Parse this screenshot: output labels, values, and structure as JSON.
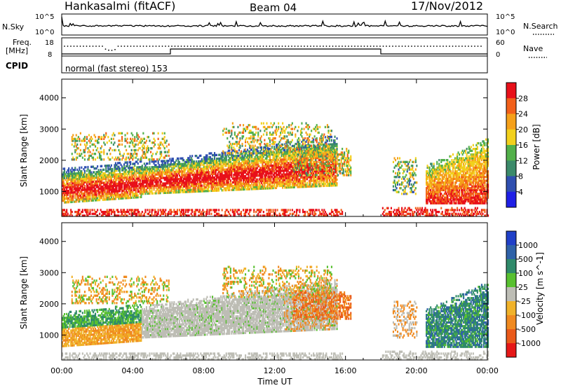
{
  "header": {
    "station": "Hankasalmi (fitACF)",
    "beam": "Beam 04",
    "date": "17/Nov/2012"
  },
  "status_panel": {
    "nsky_label": "N.Sky",
    "nsky_tick_high": "10^5",
    "nsky_tick_low": "10^0",
    "nsearch_label": "N.Search",
    "nsearch_tick_high": "10^5",
    "nsearch_tick_low": "10^0",
    "freq_label_line1": "Freq.",
    "freq_label_line2": "[MHz]",
    "freq_tick_high": "18",
    "freq_tick_low": "8",
    "nave_label": "Nave",
    "nave_tick_high": "60",
    "nave_tick_low": "0",
    "cpid_label": "CPID",
    "cpid_value": "normal (fast stereo) 153"
  },
  "colors": {
    "power_scale": [
      "#1f1fe6",
      "#2f4fb0",
      "#3b8a6a",
      "#52b04a",
      "#f2d01c",
      "#f5a01a",
      "#f2601a",
      "#e8101a"
    ],
    "velocity_scale": [
      "#2040c8",
      "#2f62a8",
      "#2f8a6a",
      "#58c030",
      "#bdbdb5",
      "#f0b22a",
      "#f08a20",
      "#ea5a1a",
      "#e61818"
    ]
  },
  "chart_data": [
    {
      "type": "heatmap",
      "panel": "power",
      "xlabel": "",
      "ylabel": "Slant Range [km]",
      "yticks": [
        "1000",
        "2000",
        "3000",
        "4000"
      ],
      "ylim": [
        200,
        4600
      ],
      "xlim": [
        "00:00",
        "24:00"
      ],
      "colorbar_label": "Power [dB]",
      "colorbar_ticks": [
        "4",
        "8",
        "12",
        "16",
        "20",
        "24",
        "28"
      ],
      "grid": false
    },
    {
      "type": "heatmap",
      "panel": "velocity",
      "xlabel": "Time UT",
      "xticks": [
        "00:00",
        "04:00",
        "08:00",
        "12:00",
        "16:00",
        "20:00",
        "00:00"
      ],
      "ylabel": "Slant Range [km]",
      "yticks": [
        "1000",
        "2000",
        "3000",
        "4000"
      ],
      "ylim": [
        200,
        4600
      ],
      "xlim": [
        "00:00",
        "24:00"
      ],
      "colorbar_label": "Velocity [m s^-1]",
      "colorbar_ticks": [
        "1000",
        "500",
        "100",
        "25",
        "-25",
        "-100",
        "-500",
        "-1000"
      ],
      "grid": false
    }
  ]
}
